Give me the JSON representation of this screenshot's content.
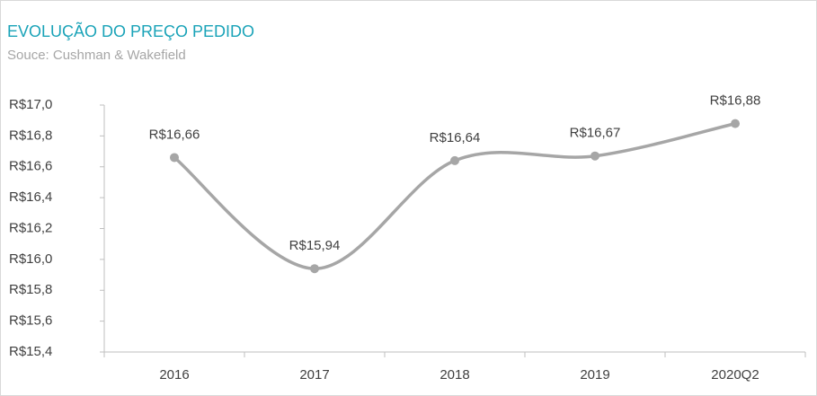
{
  "chart_data": {
    "type": "line",
    "title": "EVOLUÇÃO DO PREÇO PEDIDO",
    "subtitle": "Souce: Cushman & Wakefield",
    "categories": [
      "2016",
      "2017",
      "2018",
      "2019",
      "2020Q2"
    ],
    "values": [
      16.66,
      15.94,
      16.64,
      16.67,
      16.88
    ],
    "value_labels": [
      "R$16,66",
      "R$15,94",
      "R$16,64",
      "R$16,67",
      "R$16,88"
    ],
    "color": "#a6a6a6",
    "smooth": true,
    "ylim": [
      15.4,
      17.0
    ],
    "yticks": [
      {
        "value": 15.4,
        "label": "R$15,4"
      },
      {
        "value": 15.6,
        "label": "R$15,6"
      },
      {
        "value": 15.8,
        "label": "R$15,8"
      },
      {
        "value": 16.0,
        "label": "R$16,0"
      },
      {
        "value": 16.2,
        "label": "R$16,2"
      },
      {
        "value": 16.4,
        "label": "R$16,4"
      },
      {
        "value": 16.6,
        "label": "R$16,6"
      },
      {
        "value": 16.8,
        "label": "R$16,8"
      },
      {
        "value": 17.0,
        "label": "R$17,0"
      }
    ],
    "grid": false
  }
}
